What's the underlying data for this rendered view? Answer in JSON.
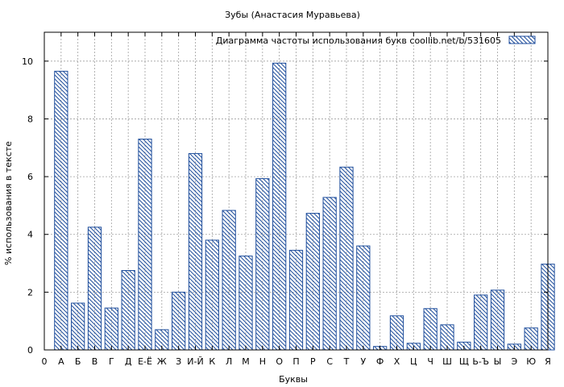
{
  "chart_data": {
    "type": "bar",
    "title": "Зубы (Анастасия Муравьева)",
    "xlabel": "Буквы",
    "ylabel": "% использования в тексте",
    "legend": {
      "label": "Диаграмма частоты использования букв  coollib.net/b/531605",
      "placement": "top-right"
    },
    "grid": true,
    "ylim": [
      0,
      11
    ],
    "yticks": [
      0,
      2,
      4,
      6,
      8,
      10
    ],
    "x_ticklabels": [
      "0",
      "А",
      "Б",
      "В",
      "Г",
      "Д",
      "Е-Ё",
      "Ж",
      "З",
      "И-Й",
      "К",
      "Л",
      "М",
      "Н",
      "О",
      "П",
      "Р",
      "С",
      "Т",
      "У",
      "Ф",
      "Х",
      "Ц",
      "Ч",
      "Ш",
      "Щ",
      "Ь-Ъ",
      "Ы",
      "Э",
      "Ю",
      "Я"
    ],
    "categories": [
      "А",
      "Б",
      "В",
      "Г",
      "Д",
      "Е-Ё",
      "Ж",
      "З",
      "И-Й",
      "К",
      "Л",
      "М",
      "Н",
      "О",
      "П",
      "Р",
      "С",
      "Т",
      "У",
      "Ф",
      "Х",
      "Ц",
      "Ч",
      "Ш",
      "Щ",
      "Ь-Ъ",
      "Ы",
      "Э",
      "Ю",
      "Я"
    ],
    "values": [
      9.65,
      1.62,
      4.25,
      1.45,
      2.75,
      7.3,
      0.7,
      2.0,
      6.8,
      3.8,
      4.83,
      3.25,
      5.93,
      9.93,
      3.45,
      4.73,
      5.28,
      6.33,
      3.6,
      0.12,
      1.18,
      0.23,
      1.43,
      0.87,
      0.27,
      1.9,
      2.07,
      0.2,
      0.76,
      2.97
    ],
    "colors": {
      "bar_stroke": "#1f4e9c",
      "hatch": "#1f4e9c",
      "grid": "#a0a0a0",
      "axis": "#000000"
    }
  }
}
